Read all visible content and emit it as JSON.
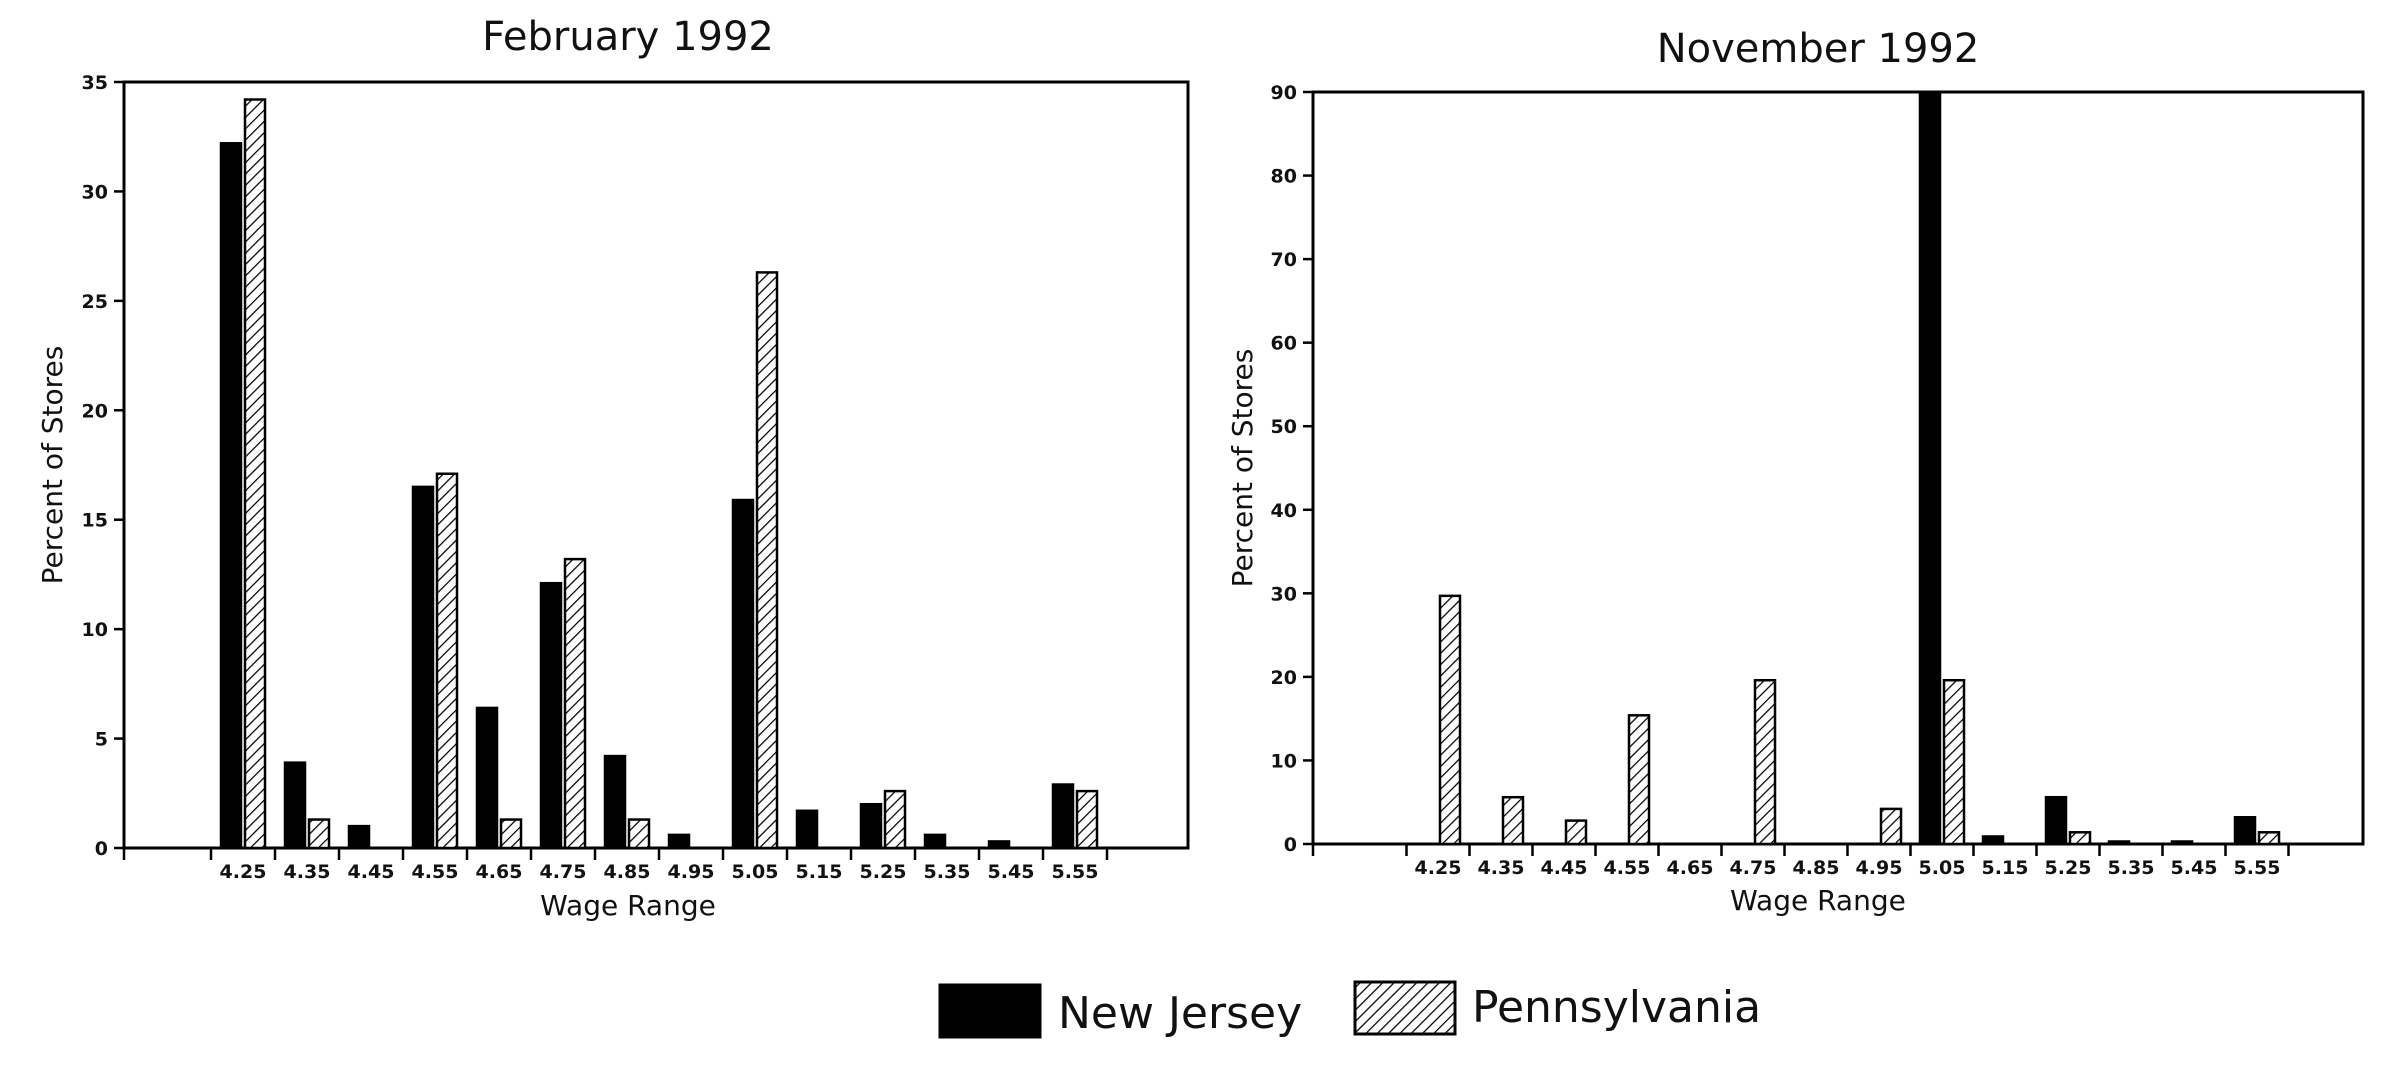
{
  "legend": [
    {
      "name": "New Jersey",
      "fill": "solid",
      "color": "#000000"
    },
    {
      "name": "Pennsylvania",
      "fill": "hatched",
      "color": "#000000"
    }
  ],
  "chart_data": [
    {
      "type": "bar",
      "title": "February 1992",
      "xlabel": "Wage Range",
      "ylabel": "Percent of Stores",
      "ylim": [
        0,
        35
      ],
      "yticks": [
        0,
        5,
        10,
        15,
        20,
        25,
        30,
        35
      ],
      "grid": false,
      "legend_position": "bottom-center",
      "categories": [
        "4.25",
        "4.35",
        "4.45",
        "4.55",
        "4.65",
        "4.75",
        "4.85",
        "4.95",
        "5.05",
        "5.15",
        "5.25",
        "5.35",
        "5.45",
        "5.55"
      ],
      "series": [
        {
          "name": "New Jersey",
          "values": [
            32.2,
            3.9,
            1.0,
            16.5,
            6.4,
            12.1,
            4.2,
            0.6,
            15.9,
            1.7,
            2.0,
            0.6,
            0.3,
            2.9
          ]
        },
        {
          "name": "Pennsylvania",
          "values": [
            34.2,
            1.3,
            0,
            17.1,
            1.3,
            13.2,
            1.3,
            0,
            26.3,
            0,
            2.6,
            0,
            0,
            2.6
          ]
        }
      ]
    },
    {
      "type": "bar",
      "title": "November 1992",
      "xlabel": "Wage Range",
      "ylabel": "Percent of Stores",
      "ylim": [
        0,
        90
      ],
      "yticks": [
        0,
        10,
        20,
        30,
        40,
        50,
        60,
        70,
        80,
        90
      ],
      "grid": false,
      "legend_position": "bottom-center",
      "categories": [
        "4.25",
        "4.35",
        "4.45",
        "4.55",
        "4.65",
        "4.75",
        "4.85",
        "4.95",
        "5.05",
        "5.15",
        "5.25",
        "5.35",
        "5.45",
        "5.55"
      ],
      "series": [
        {
          "name": "New Jersey",
          "values": [
            0,
            0,
            0,
            0,
            0,
            0,
            0,
            0,
            90.0,
            0.9,
            5.6,
            0.3,
            0.3,
            3.2
          ]
        },
        {
          "name": "Pennsylvania",
          "values": [
            29.7,
            5.6,
            2.8,
            15.4,
            0,
            19.6,
            0,
            4.2,
            19.6,
            0,
            1.4,
            0,
            0,
            1.4
          ]
        }
      ]
    }
  ]
}
